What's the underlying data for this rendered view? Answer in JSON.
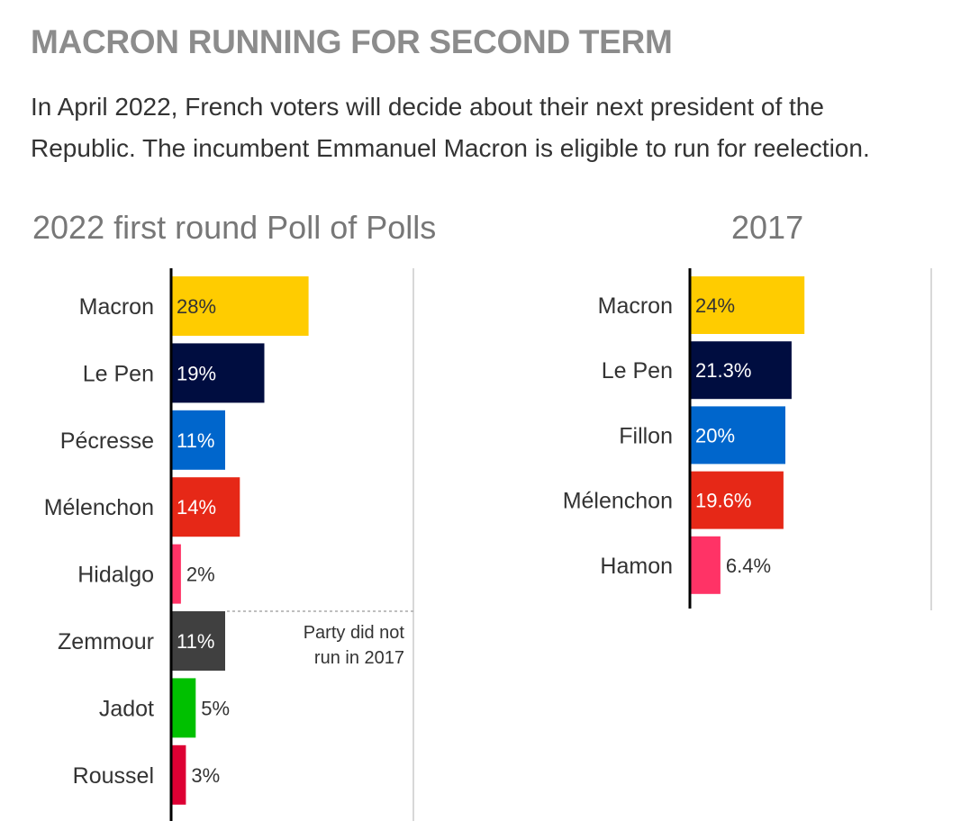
{
  "header": {
    "title": "MACRON RUNNING FOR SECOND TERM",
    "subtitle_line1": "In April 2022, French voters will decide about their next president of the",
    "subtitle_line2": "Republic. The incumbent Emmanuel Macron is eligible to run for reelection."
  },
  "colors": {
    "Macron": "#ffcc00",
    "Le Pen": "#000d40",
    "Pécresse": "#0066cc",
    "Fillon": "#0066cc",
    "Mélenchon": "#e62817",
    "Hidalgo": "#ff3366",
    "Hamon": "#ff3366",
    "Zemmour": "#404040",
    "Jadot": "#00c000",
    "Roussel": "#dd0033",
    "axis": "#000000",
    "divider": "#cccccc"
  },
  "chart_data": [
    {
      "type": "bar",
      "orientation": "horizontal",
      "title": "2022 first round Poll of Polls",
      "categories": [
        "Macron",
        "Le Pen",
        "Pécresse",
        "Mélenchon",
        "Hidalgo",
        "Zemmour",
        "Jadot",
        "Roussel"
      ],
      "values": [
        28,
        19,
        11,
        14,
        2,
        11,
        5,
        3
      ],
      "labels": [
        "28%",
        "19%",
        "11%",
        "14%",
        "2%",
        "11%",
        "5%",
        "3%"
      ],
      "annotation": {
        "text_line1": "Party did not",
        "text_line2": "run in 2017",
        "category": "Zemmour"
      }
    },
    {
      "type": "bar",
      "orientation": "horizontal",
      "title": "2017",
      "categories": [
        "Macron",
        "Le Pen",
        "Fillon",
        "Mélenchon",
        "Hamon"
      ],
      "values": [
        24,
        21.3,
        20,
        19.6,
        6.4
      ],
      "labels": [
        "24%",
        "21.3%",
        "20%",
        "19.6%",
        "6.4%"
      ]
    }
  ]
}
